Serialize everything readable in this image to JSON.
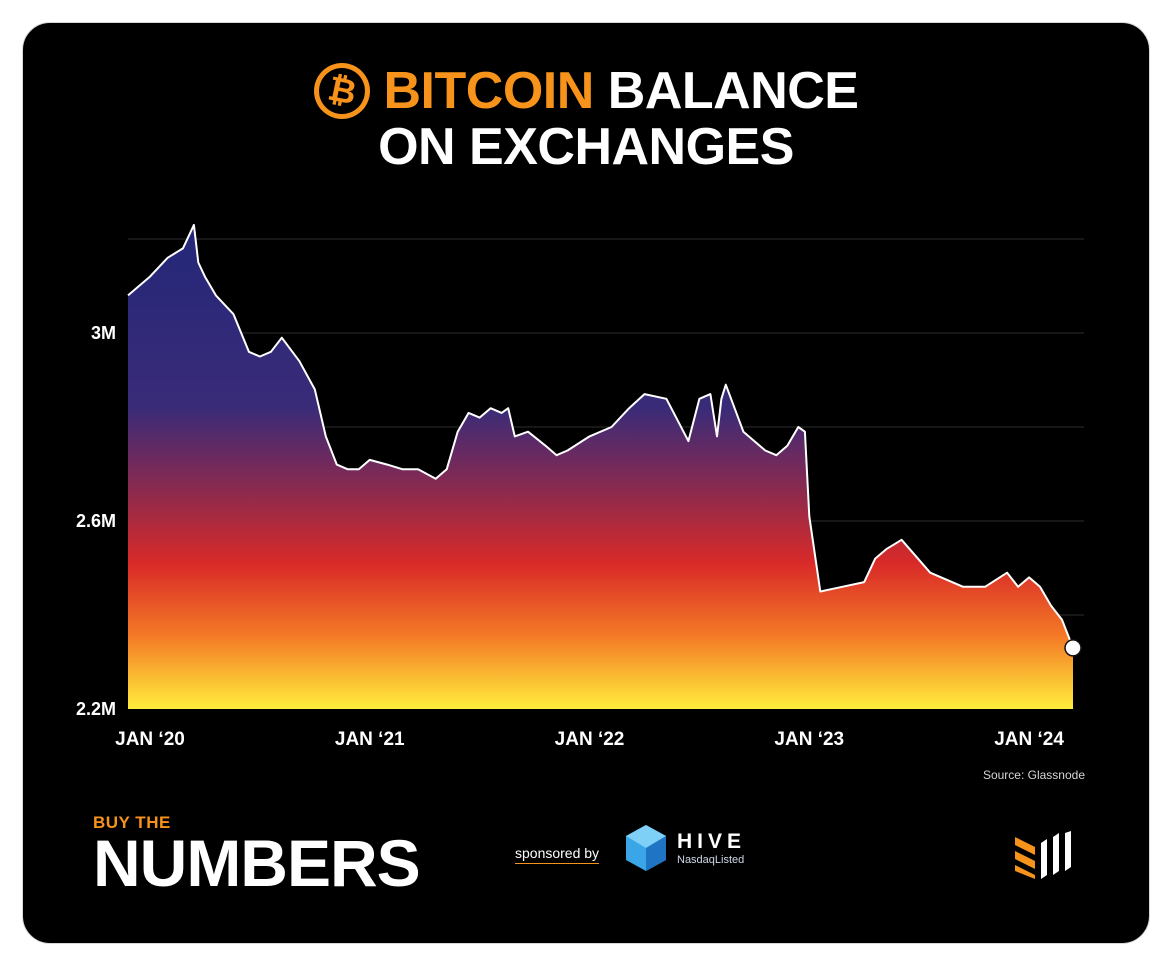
{
  "header": {
    "title_accent": "BITCOIN",
    "title_rest": "BALANCE",
    "title_line2": "ON EXCHANGES",
    "logo_glyph": "₿"
  },
  "chart_data": {
    "type": "area",
    "title": "BITCOIN BALANCE ON EXCHANGES",
    "xlabel": "",
    "ylabel": "",
    "ylim": [
      2.2,
      3.2
    ],
    "y_unit": "M BTC",
    "y_ticks": [
      {
        "value": 2.2,
        "label": "2.2M"
      },
      {
        "value": 2.6,
        "label": "2.6M"
      },
      {
        "value": 3.0,
        "label": "3M"
      }
    ],
    "y_gridlines": [
      2.4,
      2.6,
      2.8,
      3.0,
      3.2
    ],
    "x_ticks": [
      {
        "value": 2020.0,
        "label": "JAN ‘20"
      },
      {
        "value": 2021.0,
        "label": "JAN ‘21"
      },
      {
        "value": 2022.0,
        "label": "JAN ‘22"
      },
      {
        "value": 2023.0,
        "label": "JAN ‘23"
      },
      {
        "value": 2024.0,
        "label": "JAN ‘24"
      }
    ],
    "xlim": [
      2019.9,
      2024.25
    ],
    "grid": true,
    "series": [
      {
        "x": [
          2019.9,
          2020.0,
          2020.08,
          2020.15,
          2020.2,
          2020.22,
          2020.25,
          2020.3,
          2020.38,
          2020.45,
          2020.5,
          2020.55,
          2020.6,
          2020.68,
          2020.75,
          2020.8,
          2020.85,
          2020.9,
          2020.95,
          2021.0,
          2021.08,
          2021.15,
          2021.22,
          2021.3,
          2021.35,
          2021.4,
          2021.45,
          2021.5,
          2021.55,
          2021.6,
          2021.63,
          2021.66,
          2021.72,
          2021.8,
          2021.85,
          2021.9,
          2022.0,
          2022.1,
          2022.18,
          2022.25,
          2022.35,
          2022.45,
          2022.5,
          2022.55,
          2022.58,
          2022.6,
          2022.62,
          2022.7,
          2022.8,
          2022.85,
          2022.9,
          2022.95,
          2022.98,
          2023.0,
          2023.05,
          2023.15,
          2023.25,
          2023.3,
          2023.35,
          2023.42,
          2023.55,
          2023.7,
          2023.8,
          2023.9,
          2023.95,
          2024.0,
          2024.05,
          2024.1,
          2024.15,
          2024.2
        ],
        "y": [
          3.08,
          3.12,
          3.16,
          3.18,
          3.23,
          3.15,
          3.12,
          3.08,
          3.04,
          2.96,
          2.95,
          2.96,
          2.99,
          2.94,
          2.88,
          2.78,
          2.72,
          2.71,
          2.71,
          2.73,
          2.72,
          2.71,
          2.71,
          2.69,
          2.71,
          2.79,
          2.83,
          2.82,
          2.84,
          2.83,
          2.84,
          2.78,
          2.79,
          2.76,
          2.74,
          2.75,
          2.78,
          2.8,
          2.84,
          2.87,
          2.86,
          2.77,
          2.86,
          2.87,
          2.78,
          2.86,
          2.89,
          2.79,
          2.75,
          2.74,
          2.76,
          2.8,
          2.79,
          2.61,
          2.45,
          2.46,
          2.47,
          2.52,
          2.54,
          2.56,
          2.49,
          2.46,
          2.46,
          2.49,
          2.46,
          2.48,
          2.46,
          2.42,
          2.39,
          2.33
        ]
      }
    ]
  },
  "source": "Source: Glassnode",
  "brand": {
    "small": "BUY THE",
    "big": "NUMBERS",
    "sponsored": "sponsored by",
    "sponsor_name": "HIVE",
    "sponsor_sub": "NasdaqListed"
  },
  "colors": {
    "bitcoin_orange": "#f7931a",
    "fill_top": "#262a7a",
    "fill_mid": "#d92c2c",
    "fill_bottom": "#ffe93a"
  }
}
